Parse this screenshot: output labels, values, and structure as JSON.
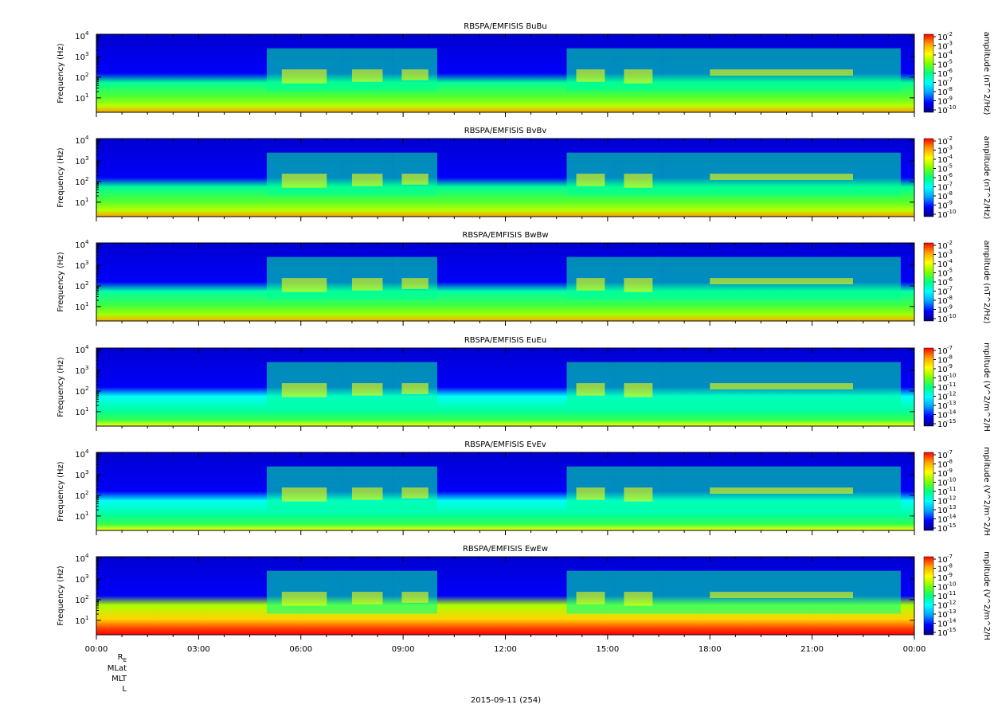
{
  "chart_data": [
    {
      "type": "heatmap",
      "title": "RBSPA/EMFISIS  BuBu",
      "ylabel": "Frequency (Hz)",
      "yscale": "log",
      "ylim": [
        2,
        12000
      ],
      "yticks": [
        {
          "base": "10",
          "exp": "1"
        },
        {
          "base": "10",
          "exp": "2"
        },
        {
          "base": "10",
          "exp": "3"
        },
        {
          "base": "10",
          "exp": "4"
        }
      ],
      "colorbar_label": "amplitude (nT^2/Hz)",
      "colorbar_ticks": [
        {
          "base": "10",
          "exp": "-2"
        },
        {
          "base": "10",
          "exp": "-3"
        },
        {
          "base": "10",
          "exp": "-4"
        },
        {
          "base": "10",
          "exp": "-5"
        },
        {
          "base": "10",
          "exp": "-6"
        },
        {
          "base": "10",
          "exp": "-7"
        },
        {
          "base": "10",
          "exp": "-8"
        },
        {
          "base": "10",
          "exp": "-9"
        },
        {
          "base": "10",
          "exp": "-10"
        }
      ],
      "floor_level": 0.68
    },
    {
      "type": "heatmap",
      "title": "RBSPA/EMFISIS  BvBv",
      "ylabel": "Frequency (Hz)",
      "yscale": "log",
      "ylim": [
        2,
        12000
      ],
      "yticks": [
        {
          "base": "10",
          "exp": "1"
        },
        {
          "base": "10",
          "exp": "2"
        },
        {
          "base": "10",
          "exp": "3"
        },
        {
          "base": "10",
          "exp": "4"
        }
      ],
      "colorbar_label": "amplitude (nT^2/Hz)",
      "colorbar_ticks": [
        {
          "base": "10",
          "exp": "-2"
        },
        {
          "base": "10",
          "exp": "-3"
        },
        {
          "base": "10",
          "exp": "-4"
        },
        {
          "base": "10",
          "exp": "-5"
        },
        {
          "base": "10",
          "exp": "-6"
        },
        {
          "base": "10",
          "exp": "-7"
        },
        {
          "base": "10",
          "exp": "-8"
        },
        {
          "base": "10",
          "exp": "-9"
        },
        {
          "base": "10",
          "exp": "-10"
        }
      ],
      "floor_level": 0.68
    },
    {
      "type": "heatmap",
      "title": "RBSPA/EMFISIS  BwBw",
      "ylabel": "Frequency (Hz)",
      "yscale": "log",
      "ylim": [
        2,
        12000
      ],
      "yticks": [
        {
          "base": "10",
          "exp": "1"
        },
        {
          "base": "10",
          "exp": "2"
        },
        {
          "base": "10",
          "exp": "3"
        },
        {
          "base": "10",
          "exp": "4"
        }
      ],
      "colorbar_label": "amplitude (nT^2/Hz)",
      "colorbar_ticks": [
        {
          "base": "10",
          "exp": "-2"
        },
        {
          "base": "10",
          "exp": "-3"
        },
        {
          "base": "10",
          "exp": "-4"
        },
        {
          "base": "10",
          "exp": "-5"
        },
        {
          "base": "10",
          "exp": "-6"
        },
        {
          "base": "10",
          "exp": "-7"
        },
        {
          "base": "10",
          "exp": "-8"
        },
        {
          "base": "10",
          "exp": "-9"
        },
        {
          "base": "10",
          "exp": "-10"
        }
      ],
      "floor_level": 0.66
    },
    {
      "type": "heatmap",
      "title": "RBSPA/EMFISIS  EuEu",
      "ylabel": "Frequency (Hz)",
      "yscale": "log",
      "ylim": [
        2,
        12000
      ],
      "yticks": [
        {
          "base": "10",
          "exp": "1"
        },
        {
          "base": "10",
          "exp": "2"
        },
        {
          "base": "10",
          "exp": "3"
        },
        {
          "base": "10",
          "exp": "4"
        }
      ],
      "colorbar_label": "mplitude (V^2/m^2/H",
      "colorbar_ticks": [
        {
          "base": "10",
          "exp": "-7"
        },
        {
          "base": "10",
          "exp": "-8"
        },
        {
          "base": "10",
          "exp": "-9"
        },
        {
          "base": "10",
          "exp": "-10"
        },
        {
          "base": "10",
          "exp": "-11"
        },
        {
          "base": "10",
          "exp": "-12"
        },
        {
          "base": "10",
          "exp": "-13"
        },
        {
          "base": "10",
          "exp": "-14"
        },
        {
          "base": "10",
          "exp": "-15"
        }
      ],
      "floor_level": 0.55
    },
    {
      "type": "heatmap",
      "title": "RBSPA/EMFISIS  EvEv",
      "ylabel": "Frequency (Hz)",
      "yscale": "log",
      "ylim": [
        2,
        12000
      ],
      "yticks": [
        {
          "base": "10",
          "exp": "1"
        },
        {
          "base": "10",
          "exp": "2"
        },
        {
          "base": "10",
          "exp": "3"
        },
        {
          "base": "10",
          "exp": "4"
        }
      ],
      "colorbar_label": "mplitude (V^2/m^2/H",
      "colorbar_ticks": [
        {
          "base": "10",
          "exp": "-7"
        },
        {
          "base": "10",
          "exp": "-8"
        },
        {
          "base": "10",
          "exp": "-9"
        },
        {
          "base": "10",
          "exp": "-10"
        },
        {
          "base": "10",
          "exp": "-11"
        },
        {
          "base": "10",
          "exp": "-12"
        },
        {
          "base": "10",
          "exp": "-13"
        },
        {
          "base": "10",
          "exp": "-14"
        },
        {
          "base": "10",
          "exp": "-15"
        }
      ],
      "floor_level": 0.55
    },
    {
      "type": "heatmap",
      "title": "RBSPA/EMFISIS  EwEw",
      "ylabel": "Frequency (Hz)",
      "yscale": "log",
      "ylim": [
        2,
        12000
      ],
      "yticks": [
        {
          "base": "10",
          "exp": "1"
        },
        {
          "base": "10",
          "exp": "2"
        },
        {
          "base": "10",
          "exp": "3"
        },
        {
          "base": "10",
          "exp": "4"
        }
      ],
      "colorbar_label": "mplitude (V^2/m^2/H",
      "colorbar_ticks": [
        {
          "base": "10",
          "exp": "-7"
        },
        {
          "base": "10",
          "exp": "-8"
        },
        {
          "base": "10",
          "exp": "-9"
        },
        {
          "base": "10",
          "exp": "-10"
        },
        {
          "base": "10",
          "exp": "-11"
        },
        {
          "base": "10",
          "exp": "-12"
        },
        {
          "base": "10",
          "exp": "-13"
        },
        {
          "base": "10",
          "exp": "-14"
        },
        {
          "base": "10",
          "exp": "-15"
        }
      ],
      "floor_level": 0.95
    }
  ],
  "x_axis": {
    "tick_labels": [
      "00:00",
      "03:00",
      "06:00",
      "09:00",
      "12:00",
      "15:00",
      "18:00",
      "21:00",
      "00:00"
    ],
    "minor_ticks_per_major": 3
  },
  "orbit_labels": {
    "re": "R",
    "re_sub": "E",
    "mlat": "MLat",
    "mlt": "MLT",
    "l": "L"
  },
  "date_label": "2015-09-11 (254)",
  "colorscale": [
    "#000080",
    "#0000ff",
    "#00a0ff",
    "#00ffff",
    "#00ff80",
    "#80ff00",
    "#ffff00",
    "#ffa000",
    "#ff0000"
  ]
}
